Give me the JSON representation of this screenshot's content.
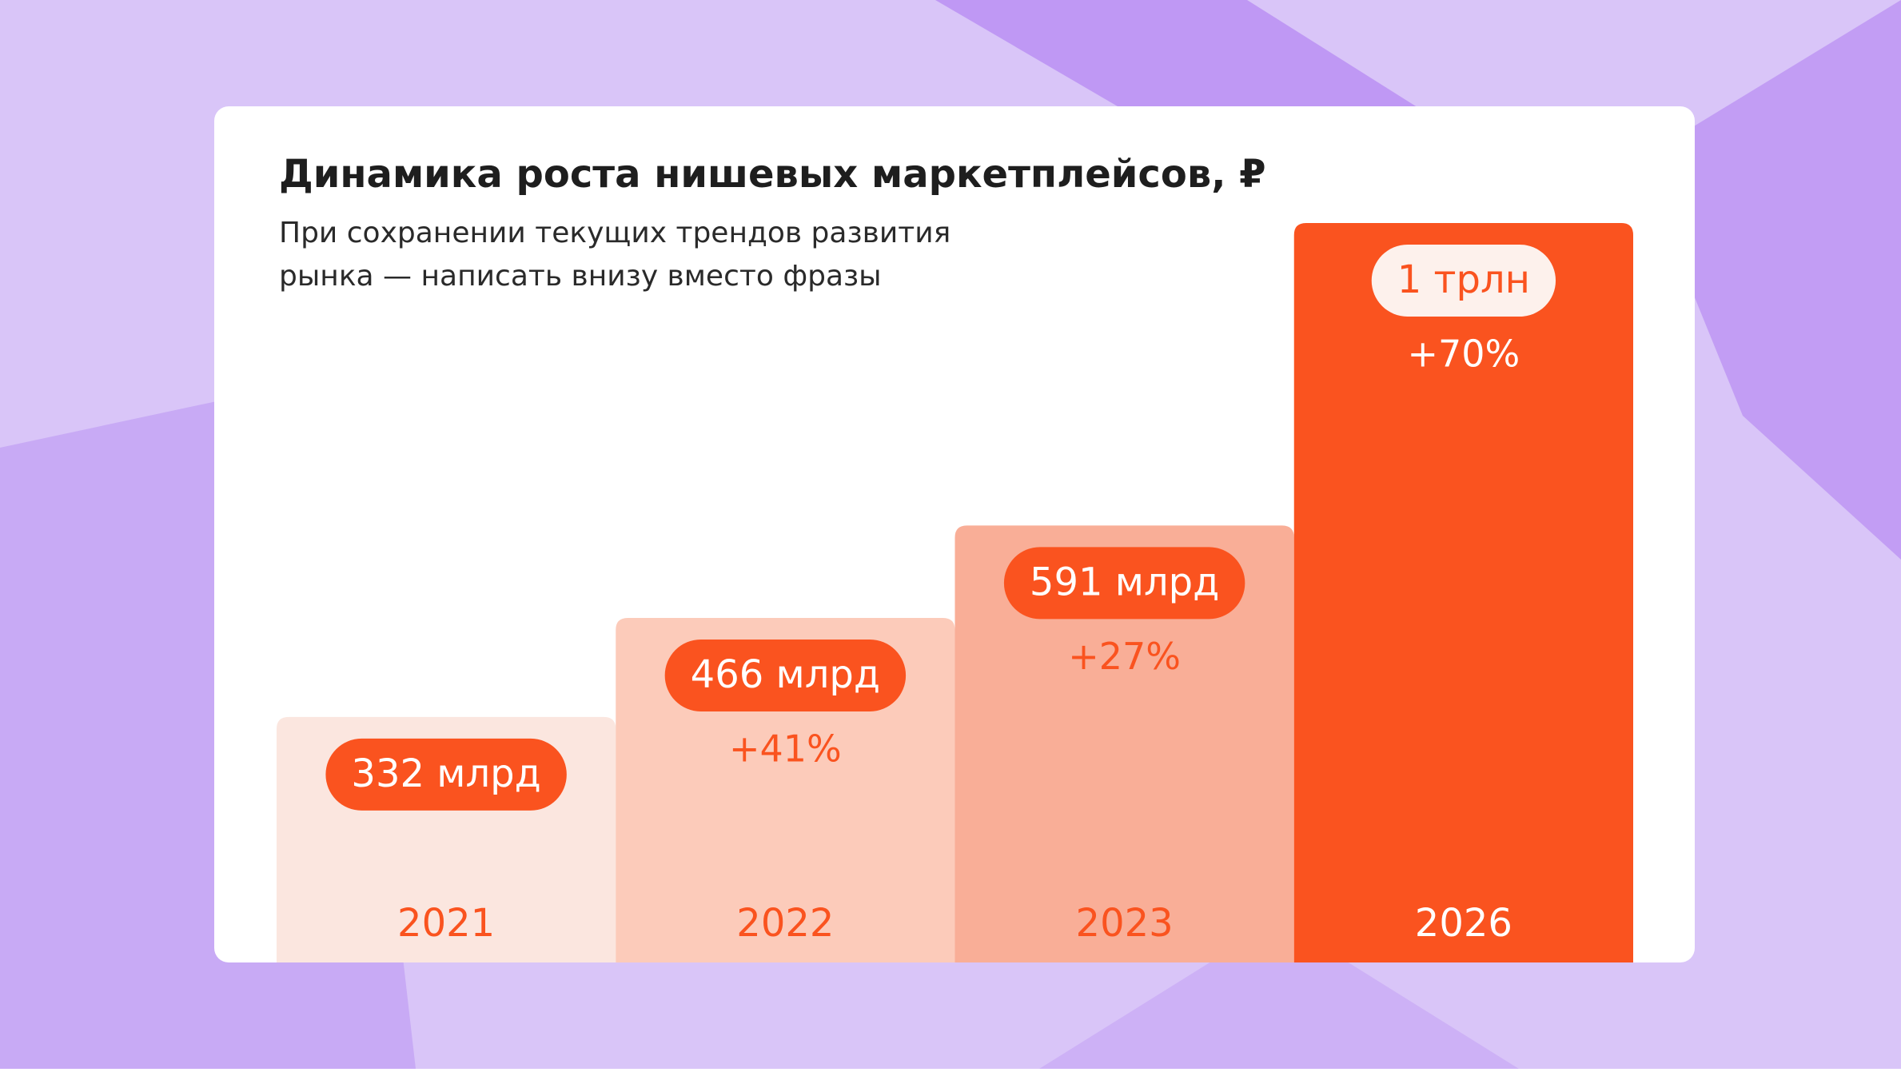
{
  "chart_data": {
    "type": "bar",
    "title": "Динамика роста нишевых маркетплейсов, ₽",
    "subtitle": [
      "При сохранении текущих трендов развития",
      "рынка — написать внизу вместо фразы"
    ],
    "categories": [
      "2021",
      "2022",
      "2023",
      "2026"
    ],
    "values": [
      332,
      466,
      591,
      1000
    ],
    "value_labels": [
      "332 млрд",
      "466 млрд",
      "591 млрд",
      "1 трлн"
    ],
    "growth_labels": [
      null,
      "+41%",
      "+27%",
      "+70%"
    ],
    "colors": [
      "#fbe6df",
      "#fccbba",
      "#f9ae97",
      "#fa531f"
    ]
  }
}
